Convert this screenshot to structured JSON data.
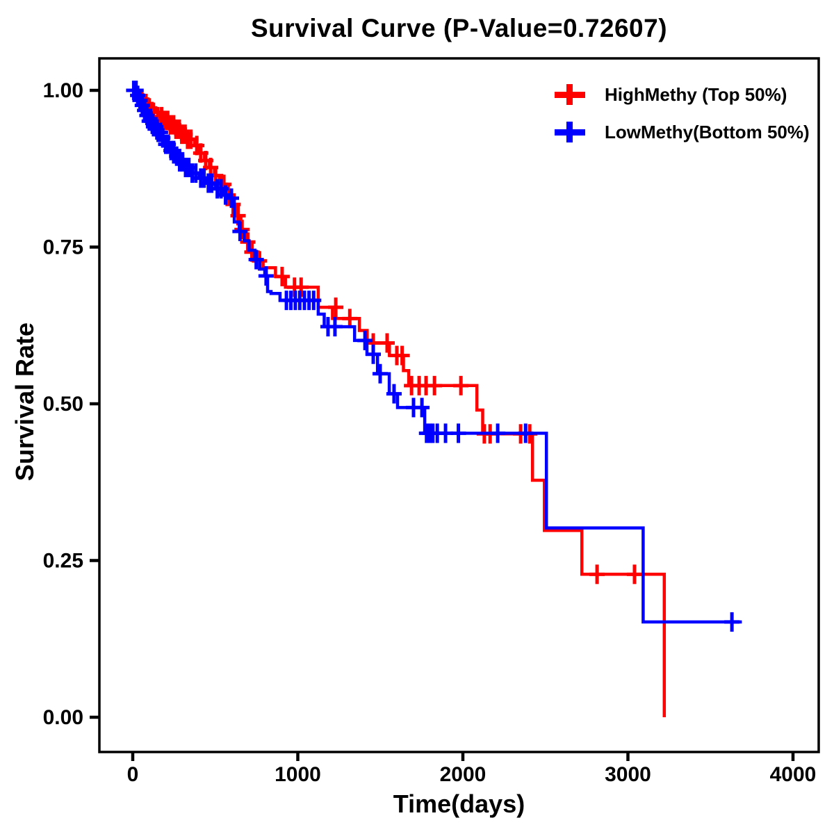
{
  "title": "Survival Curve (P-Value=0.72607)",
  "chart_data": {
    "type": "line",
    "subtype": "kaplan-meier-step-survival",
    "title": "Survival Curve (P-Value=0.72607)",
    "p_value": "0.72607",
    "xlabel": "Time(days)",
    "ylabel": "Survival Rate",
    "xlim": [
      0,
      4000
    ],
    "ylim": [
      0.0,
      1.0
    ],
    "x_ticks": [
      0,
      1000,
      2000,
      3000,
      4000
    ],
    "x_tick_labels": [
      "0",
      "1000",
      "2000",
      "3000",
      "4000"
    ],
    "y_ticks": [
      0.0,
      0.25,
      0.5,
      0.75,
      1.0
    ],
    "y_tick_labels": [
      "0.00",
      "0.25",
      "0.50",
      "0.75",
      "1.00"
    ],
    "grid": false,
    "legend_position": "top-right",
    "background_color": "#ffffff",
    "axis_color": "#000000",
    "censor_marker": "plus",
    "series": [
      {
        "name": "HighMethy (Top 50%)",
        "color": "#ff0000",
        "marker": "plus",
        "steps": [
          [
            0,
            1.0
          ],
          [
            35,
            0.993
          ],
          [
            60,
            0.986
          ],
          [
            85,
            0.979
          ],
          [
            110,
            0.972
          ],
          [
            140,
            0.965
          ],
          [
            170,
            0.958
          ],
          [
            200,
            0.952
          ],
          [
            235,
            0.945
          ],
          [
            270,
            0.938
          ],
          [
            305,
            0.93
          ],
          [
            340,
            0.922
          ],
          [
            375,
            0.912
          ],
          [
            405,
            0.9
          ],
          [
            435,
            0.888
          ],
          [
            465,
            0.877
          ],
          [
            495,
            0.864
          ],
          [
            525,
            0.85
          ],
          [
            560,
            0.833
          ],
          [
            595,
            0.818
          ],
          [
            625,
            0.8
          ],
          [
            655,
            0.778
          ],
          [
            685,
            0.758
          ],
          [
            715,
            0.742
          ],
          [
            755,
            0.728
          ],
          [
            790,
            0.717
          ],
          [
            865,
            0.703
          ],
          [
            925,
            0.686
          ],
          [
            1124,
            0.654
          ],
          [
            1210,
            0.636
          ],
          [
            1373,
            0.617
          ],
          [
            1420,
            0.597
          ],
          [
            1555,
            0.577
          ],
          [
            1640,
            0.553
          ],
          [
            1672,
            0.529
          ],
          [
            2085,
            0.49
          ],
          [
            2120,
            0.452
          ],
          [
            2422,
            0.378
          ],
          [
            2494,
            0.298
          ],
          [
            2721,
            0.228
          ],
          [
            3220,
            0.0
          ]
        ],
        "censors": [
          [
            55,
            0.986
          ],
          [
            80,
            0.979
          ],
          [
            100,
            0.972
          ],
          [
            125,
            0.965
          ],
          [
            152,
            0.958
          ],
          [
            175,
            0.958
          ],
          [
            192,
            0.952
          ],
          [
            212,
            0.952
          ],
          [
            228,
            0.945
          ],
          [
            248,
            0.945
          ],
          [
            262,
            0.938
          ],
          [
            282,
            0.938
          ],
          [
            297,
            0.93
          ],
          [
            317,
            0.93
          ],
          [
            332,
            0.922
          ],
          [
            352,
            0.922
          ],
          [
            388,
            0.912
          ],
          [
            412,
            0.9
          ],
          [
            442,
            0.888
          ],
          [
            472,
            0.877
          ],
          [
            502,
            0.864
          ],
          [
            532,
            0.85
          ],
          [
            552,
            0.85
          ],
          [
            578,
            0.833
          ],
          [
            608,
            0.818
          ],
          [
            638,
            0.8
          ],
          [
            662,
            0.778
          ],
          [
            697,
            0.758
          ],
          [
            722,
            0.742
          ],
          [
            768,
            0.728
          ],
          [
            905,
            0.703
          ],
          [
            980,
            0.686
          ],
          [
            1020,
            0.686
          ],
          [
            1230,
            0.654
          ],
          [
            1315,
            0.636
          ],
          [
            1457,
            0.597
          ],
          [
            1541,
            0.597
          ],
          [
            1600,
            0.577
          ],
          [
            1632,
            0.577
          ],
          [
            1689,
            0.529
          ],
          [
            1735,
            0.529
          ],
          [
            1777,
            0.529
          ],
          [
            1828,
            0.529
          ],
          [
            1988,
            0.529
          ],
          [
            2130,
            0.452
          ],
          [
            2165,
            0.452
          ],
          [
            2350,
            0.452
          ],
          [
            2405,
            0.452
          ],
          [
            2813,
            0.228
          ],
          [
            3040,
            0.228
          ]
        ]
      },
      {
        "name": "LowMethy(Bottom 50%)",
        "color": "#0000ff",
        "marker": "plus",
        "steps": [
          [
            0,
            1.0
          ],
          [
            18,
            0.992
          ],
          [
            32,
            0.984
          ],
          [
            46,
            0.976
          ],
          [
            60,
            0.968
          ],
          [
            78,
            0.96
          ],
          [
            96,
            0.951
          ],
          [
            118,
            0.942
          ],
          [
            142,
            0.933
          ],
          [
            168,
            0.924
          ],
          [
            196,
            0.914
          ],
          [
            226,
            0.904
          ],
          [
            258,
            0.895
          ],
          [
            292,
            0.886
          ],
          [
            326,
            0.877
          ],
          [
            362,
            0.868
          ],
          [
            402,
            0.86
          ],
          [
            448,
            0.852
          ],
          [
            500,
            0.843
          ],
          [
            548,
            0.833
          ],
          [
            585,
            0.828
          ],
          [
            615,
            0.79
          ],
          [
            645,
            0.775
          ],
          [
            675,
            0.76
          ],
          [
            705,
            0.745
          ],
          [
            740,
            0.73
          ],
          [
            770,
            0.715
          ],
          [
            800,
            0.704
          ],
          [
            817,
            0.679
          ],
          [
            838,
            0.676
          ],
          [
            892,
            0.665
          ],
          [
            1124,
            0.643
          ],
          [
            1160,
            0.623
          ],
          [
            1344,
            0.601
          ],
          [
            1419,
            0.579
          ],
          [
            1483,
            0.548
          ],
          [
            1554,
            0.516
          ],
          [
            1604,
            0.494
          ],
          [
            1769,
            0.453
          ],
          [
            2506,
            0.302
          ],
          [
            3092,
            0.152
          ],
          [
            3690,
            0.152
          ]
        ],
        "censors": [
          [
            6,
            1.0
          ],
          [
            20,
            1.0
          ],
          [
            30,
            0.992
          ],
          [
            44,
            0.984
          ],
          [
            58,
            0.976
          ],
          [
            72,
            0.968
          ],
          [
            86,
            0.96
          ],
          [
            100,
            0.951
          ],
          [
            112,
            0.951
          ],
          [
            126,
            0.942
          ],
          [
            140,
            0.942
          ],
          [
            154,
            0.933
          ],
          [
            168,
            0.933
          ],
          [
            182,
            0.924
          ],
          [
            200,
            0.914
          ],
          [
            215,
            0.914
          ],
          [
            232,
            0.904
          ],
          [
            248,
            0.904
          ],
          [
            266,
            0.895
          ],
          [
            284,
            0.886
          ],
          [
            302,
            0.886
          ],
          [
            320,
            0.877
          ],
          [
            340,
            0.877
          ],
          [
            360,
            0.868
          ],
          [
            382,
            0.868
          ],
          [
            412,
            0.86
          ],
          [
            432,
            0.86
          ],
          [
            458,
            0.852
          ],
          [
            478,
            0.852
          ],
          [
            512,
            0.843
          ],
          [
            535,
            0.843
          ],
          [
            562,
            0.833
          ],
          [
            598,
            0.828
          ],
          [
            650,
            0.775
          ],
          [
            748,
            0.73
          ],
          [
            808,
            0.704
          ],
          [
            931,
            0.665
          ],
          [
            958,
            0.665
          ],
          [
            985,
            0.665
          ],
          [
            1012,
            0.665
          ],
          [
            1040,
            0.665
          ],
          [
            1068,
            0.665
          ],
          [
            1096,
            0.665
          ],
          [
            1183,
            0.623
          ],
          [
            1225,
            0.623
          ],
          [
            1407,
            0.601
          ],
          [
            1457,
            0.579
          ],
          [
            1499,
            0.548
          ],
          [
            1583,
            0.516
          ],
          [
            1701,
            0.494
          ],
          [
            1752,
            0.494
          ],
          [
            1780,
            0.453
          ],
          [
            1800,
            0.453
          ],
          [
            1818,
            0.453
          ],
          [
            1845,
            0.453
          ],
          [
            1895,
            0.453
          ],
          [
            1973,
            0.453
          ],
          [
            2211,
            0.453
          ],
          [
            2380,
            0.453
          ],
          [
            3630,
            0.152
          ]
        ]
      }
    ]
  }
}
